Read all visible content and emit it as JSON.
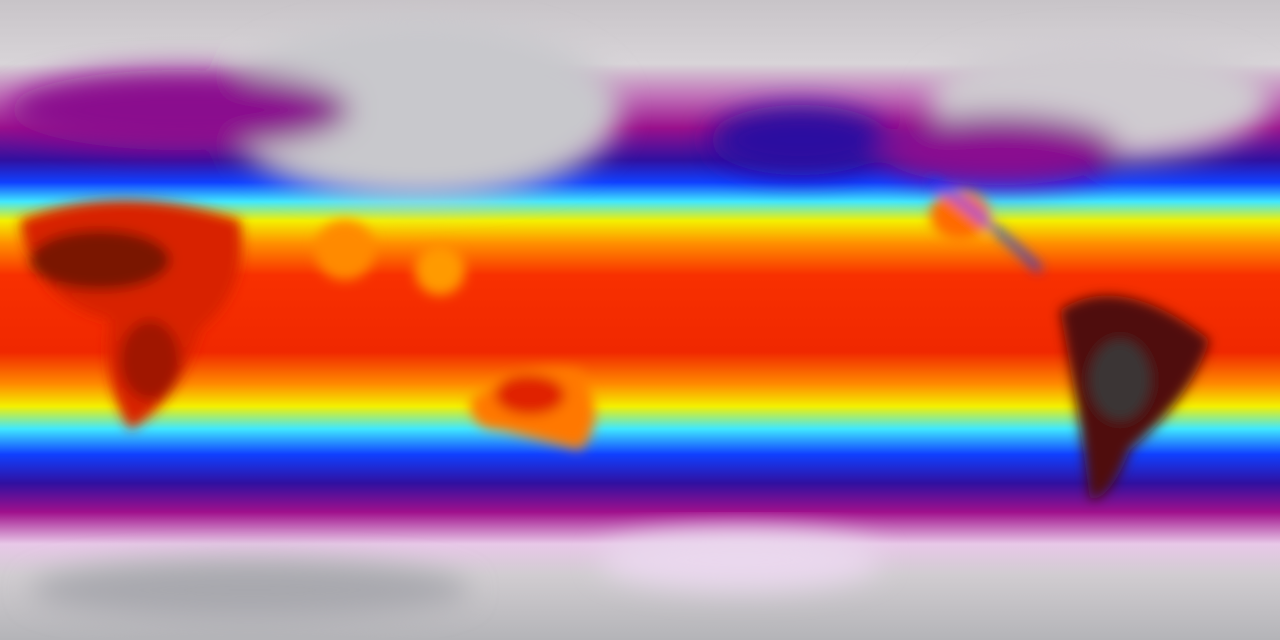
{
  "map": {
    "projection": "equirectangular",
    "palette": {
      "polar": "#c6c3c8",
      "cold_magenta": "#a0108c",
      "deep_blue": "#2a10a0",
      "blue": "#1040ff",
      "cyan": "#40e8ff",
      "yellow": "#f4f000",
      "orange": "#ff8a00",
      "red": "#f02800",
      "hot_dark": "#3a0a05"
    }
  }
}
